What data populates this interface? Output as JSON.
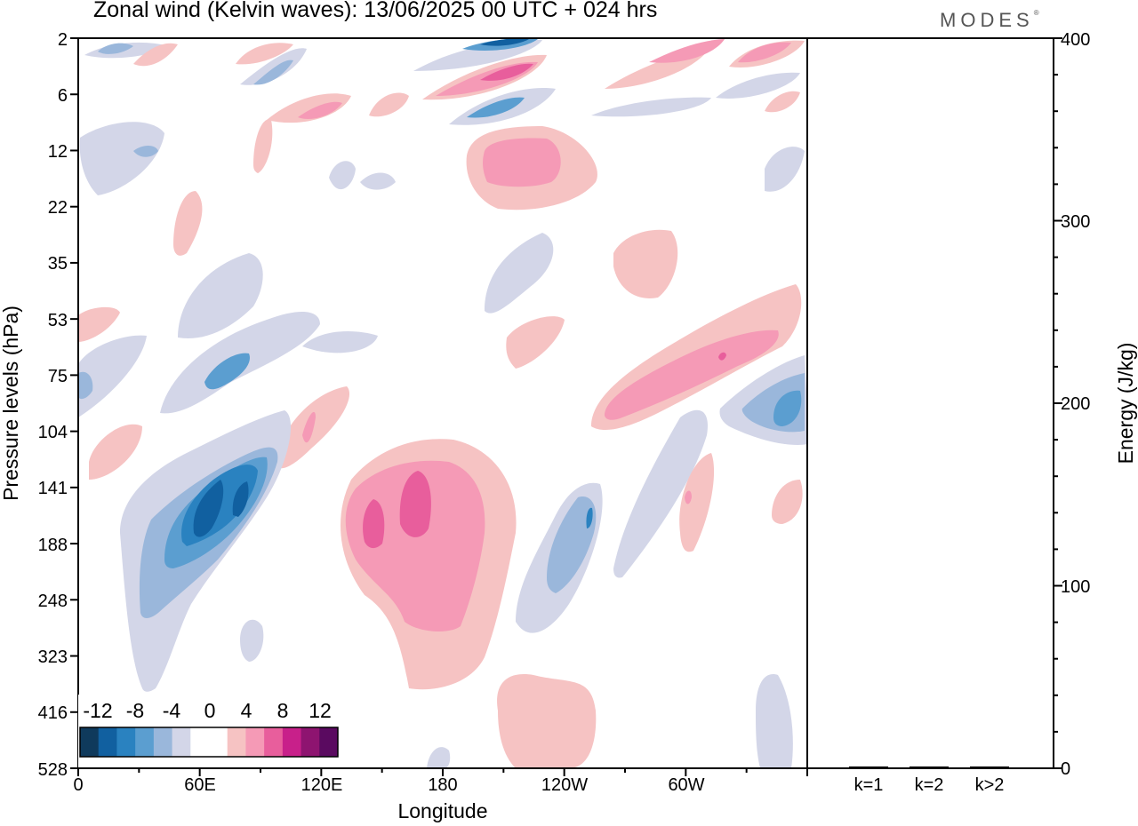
{
  "title": "Zonal wind (Kelvin waves):  13/06/2025  00 UTC  + 024 hrs",
  "logo": "MODES",
  "chart_data": [
    {
      "type": "heatmap",
      "title": "Zonal wind (Kelvin waves):  13/06/2025  00 UTC  + 024 hrs",
      "xlabel": "Longitude",
      "ylabel": "Pressure levels (hPa)",
      "x_ticks": [
        "0",
        "60E",
        "120E",
        "180",
        "120W",
        "60W"
      ],
      "x_range_deg": [
        0,
        360
      ],
      "y_ticks": [
        "2",
        "6",
        "12",
        "22",
        "35",
        "53",
        "75",
        "104",
        "141",
        "188",
        "248",
        "323",
        "416",
        "528"
      ],
      "colorbar_labels": [
        "-12",
        "-8",
        "-4",
        "0",
        "4",
        "8",
        "12"
      ],
      "colorbar_colors": [
        "#0f3a5c",
        "#1160a0",
        "#2a82c0",
        "#5b9ed0",
        "#9ab7db",
        "#d3d6e8",
        "#ffffff",
        "#ffffff",
        "#f6c3c3",
        "#f59ab6",
        "#e85e9c",
        "#c8208a",
        "#8e1470",
        "#5a0a60"
      ],
      "features": [
        {
          "sign": "negative",
          "lon": 58,
          "level": "141",
          "peak": -12
        },
        {
          "sign": "positive",
          "lon": 165,
          "level": "141",
          "peak": 10
        },
        {
          "sign": "negative",
          "lon": 252,
          "level": "188",
          "peak": -6
        },
        {
          "sign": "positive",
          "lon": 310,
          "level": "75",
          "peak": 8
        },
        {
          "sign": "negative",
          "lon": 350,
          "level": "104",
          "peak": -8
        },
        {
          "sign": "positive",
          "lon": 205,
          "level": "12",
          "peak": 6
        },
        {
          "sign": "negative",
          "lon": 210,
          "level": "2",
          "peak": -10
        },
        {
          "sign": "positive",
          "lon": 210,
          "level": "6",
          "peak": 8
        },
        {
          "sign": "negative",
          "lon": 200,
          "level": "6",
          "peak": -6
        }
      ]
    },
    {
      "type": "bar",
      "ylabel": "Energy (J/kg)",
      "categories": [
        "k=1",
        "k=2",
        "k>2"
      ],
      "values": [
        0.5,
        0.5,
        0.4
      ],
      "ylim": [
        0,
        400
      ],
      "y_ticks": [
        "0",
        "100",
        "200",
        "300",
        "400"
      ]
    }
  ]
}
